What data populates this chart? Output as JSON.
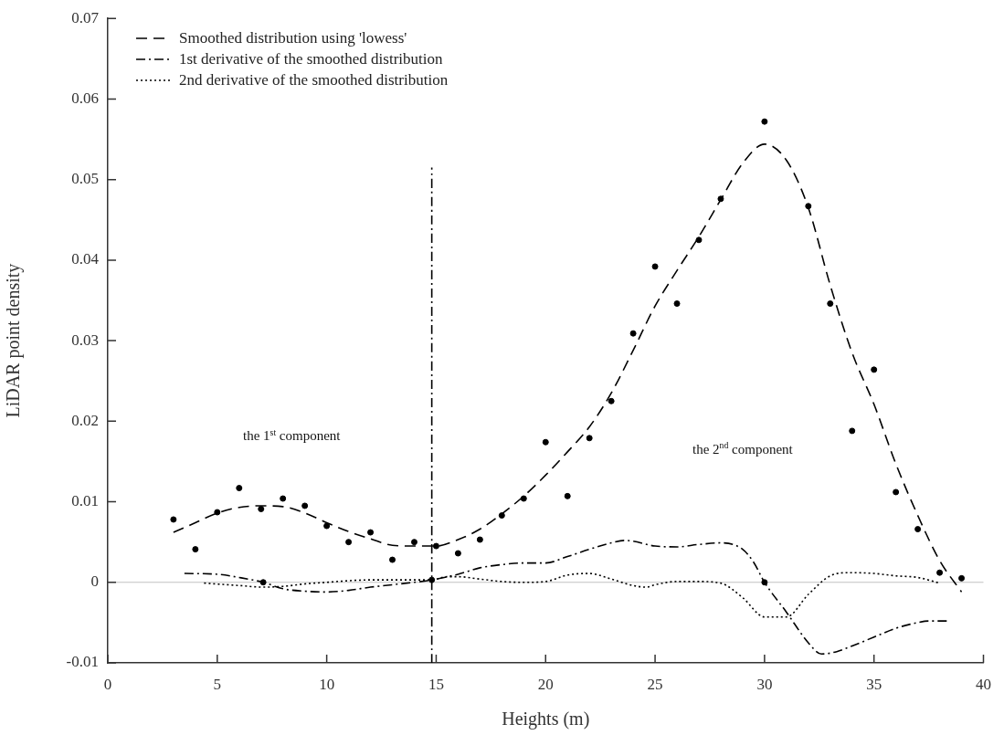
{
  "chart_data": {
    "type": "line",
    "xlabel": "Heights (m)",
    "ylabel": "LiDAR point density",
    "xlim": [
      0,
      40
    ],
    "xticks": [
      0,
      5,
      10,
      15,
      20,
      25,
      30,
      35,
      40
    ],
    "ylim": [
      -0.01,
      0.07
    ],
    "yticks": [
      -0.01,
      0,
      0.01,
      0.02,
      0.03,
      0.04,
      0.05,
      0.06,
      0.07
    ],
    "grid": false,
    "legend": "top left",
    "ref_lines": [
      {
        "axis": "y",
        "value": 0,
        "color": "#c0c0c0",
        "line_style": "solid"
      }
    ],
    "annotations": [
      "the 1$^{st}$ component",
      "the 2$^{nd}$ component"
    ],
    "series": [
      {
        "type": "scatter",
        "marker": "circle",
        "color": "#000000",
        "x": [
          3,
          4,
          5,
          6,
          7,
          8,
          9,
          10,
          11,
          12,
          13,
          14,
          15,
          16,
          17,
          18,
          19,
          20,
          21,
          22,
          23,
          24,
          25,
          26,
          27,
          28,
          30,
          32,
          33,
          34,
          35,
          36,
          37,
          38,
          39
        ],
        "values": [
          0.0078,
          0.0041,
          0.0087,
          0.0117,
          0.0091,
          0.0104,
          0.0095,
          0.007,
          0.005,
          0.0062,
          0.0028,
          0.005,
          0.0045,
          0.0036,
          0.0053,
          0.0083,
          0.0104,
          0.0174,
          0.0107,
          0.0179,
          0.0225,
          0.0309,
          0.0392,
          0.0346,
          0.0425,
          0.0476,
          0.0572,
          0.0467,
          0.0346,
          0.0188,
          0.0264,
          0.0112,
          0.0066,
          0.0012,
          0.0005
        ]
      },
      {
        "name": "Smoothed distribution using 'lowess'",
        "color": "#000000",
        "line_style": "dashed",
        "x": [
          3,
          4,
          5,
          6,
          7,
          8,
          9,
          10,
          11,
          12,
          13,
          14,
          15,
          16,
          17,
          18,
          19,
          20,
          21,
          22,
          23,
          24,
          25,
          26,
          27,
          28,
          29,
          30,
          31,
          32,
          33,
          34,
          35,
          36,
          37,
          38,
          39
        ],
        "values": [
          0.0062,
          0.0074,
          0.0086,
          0.0093,
          0.0095,
          0.0094,
          0.0086,
          0.0074,
          0.0063,
          0.0054,
          0.0046,
          0.0045,
          0.0045,
          0.0053,
          0.0066,
          0.0085,
          0.0107,
          0.0133,
          0.0162,
          0.0193,
          0.0235,
          0.0288,
          0.0343,
          0.0387,
          0.0429,
          0.0475,
          0.052,
          0.0544,
          0.0524,
          0.0465,
          0.0369,
          0.0285,
          0.0221,
          0.0147,
          0.0083,
          0.0027,
          -0.0012
        ]
      },
      {
        "name": "1st derivative of the smoothed distribution",
        "color": "#000000",
        "line_style": "dashdot",
        "x": [
          3.5,
          5,
          6,
          7.1,
          8,
          9,
          10,
          11,
          12,
          13,
          14,
          14.8,
          16,
          17,
          18,
          19,
          20,
          21,
          22,
          23,
          23.6,
          24,
          25,
          26,
          27,
          28,
          29,
          29.5,
          30,
          31,
          32,
          32.6,
          33.3,
          34,
          35,
          36,
          37,
          37.5,
          38.4
        ],
        "values": [
          0.0011,
          0.001,
          0.0006,
          0,
          -0.0008,
          -0.0011,
          -0.0012,
          -0.001,
          -0.0006,
          -0.0003,
          0,
          0.0003,
          0.001,
          0.0018,
          0.0022,
          0.0024,
          0.0024,
          0.0032,
          0.0041,
          0.0049,
          0.0052,
          0.0051,
          0.0045,
          0.0044,
          0.0047,
          0.0049,
          0.0041,
          0.0025,
          0,
          -0.0037,
          -0.0075,
          -0.0089,
          -0.0086,
          -0.0079,
          -0.0068,
          -0.0057,
          -0.005,
          -0.0048,
          -0.0048
        ]
      },
      {
        "name": "2nd derivative of the smoothed distribution",
        "color": "#000000",
        "line_style": "dotted",
        "x": [
          4.4,
          6,
          7.1,
          8,
          9,
          10,
          11,
          12,
          13,
          14,
          14.8,
          15.5,
          16,
          17,
          18,
          19,
          20,
          21,
          22,
          23,
          24,
          24.6,
          25,
          26,
          27,
          28,
          29,
          30,
          31,
          32,
          33,
          33.9,
          35,
          36,
          37,
          38
        ],
        "values": [
          -0.0001,
          -0.0004,
          -0.0006,
          -0.0005,
          -0.0002,
          0,
          0.0002,
          0.0003,
          0.0003,
          0.0003,
          0.0003,
          0.0007,
          0.0007,
          0.0004,
          0.0001,
          0,
          0.0001,
          0.0009,
          0.0011,
          0.0004,
          -0.0004,
          -0.0006,
          -0.0003,
          0.0001,
          0.0001,
          -0.0001,
          -0.0019,
          -0.0043,
          -0.0043,
          -0.0015,
          0.0008,
          0.0012,
          0.0011,
          0.0008,
          0.0006,
          -0.0001
        ]
      },
      {
        "color": "#000000",
        "line_style": "dashdot",
        "x": [
          14.8,
          14.8
        ],
        "values": [
          -0.01,
          0.0515
        ]
      },
      {
        "type": "scatter",
        "marker": "circle",
        "color": "#000000",
        "x": [
          7.1,
          14.8,
          30
        ],
        "values": [
          0,
          0.0003,
          0
        ]
      }
    ]
  }
}
